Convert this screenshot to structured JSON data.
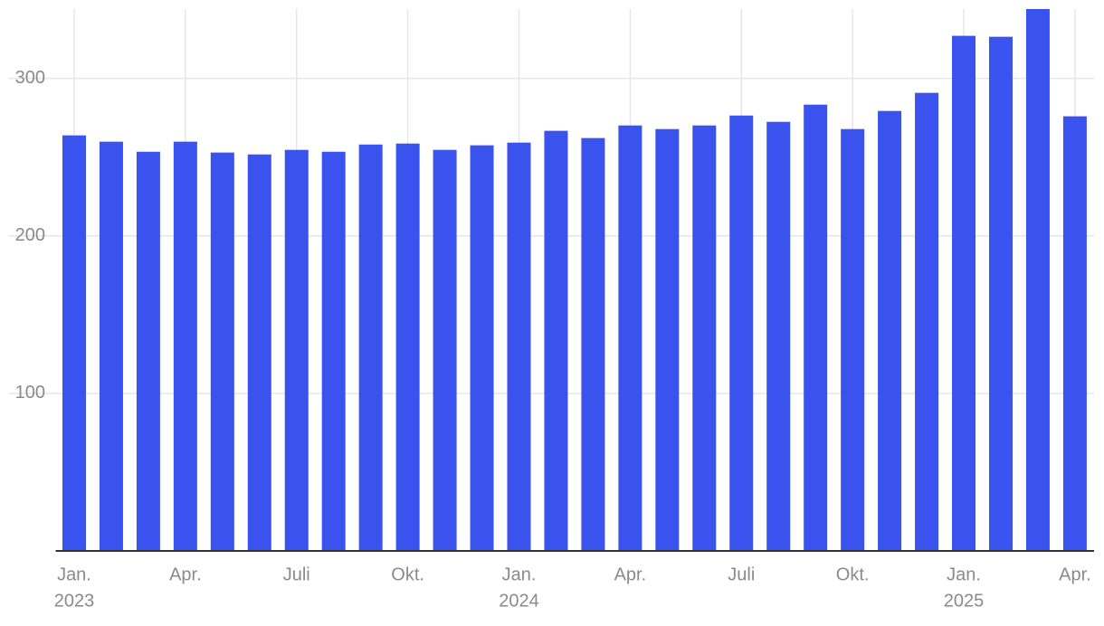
{
  "chart_data": {
    "type": "bar",
    "categories": [
      "Jan.",
      null,
      null,
      "Apr.",
      null,
      null,
      "Juli",
      null,
      null,
      "Okt.",
      null,
      null,
      "Jan.",
      null,
      null,
      "Apr.",
      null,
      null,
      "Juli",
      null,
      null,
      "Okt.",
      null,
      null,
      "Jan.",
      null,
      null,
      "Apr."
    ],
    "years": [
      "2023",
      null,
      null,
      null,
      null,
      null,
      null,
      null,
      null,
      null,
      null,
      null,
      "2024",
      null,
      null,
      null,
      null,
      null,
      null,
      null,
      null,
      null,
      null,
      null,
      "2025",
      null,
      null,
      null
    ],
    "values": [
      263.8,
      259.8,
      253.4,
      259.8,
      252.9,
      251.7,
      254.6,
      253.4,
      258.0,
      258.6,
      254.6,
      257.5,
      259.2,
      266.7,
      262.1,
      270.1,
      267.8,
      270.1,
      276.4,
      272.4,
      283.3,
      267.8,
      279.3,
      290.8,
      327.0,
      326.4,
      344,
      275.9
    ],
    "color": "#3a52ee",
    "ylim": [
      0,
      344
    ],
    "yticks": [
      100,
      200,
      300
    ],
    "grid": true
  }
}
